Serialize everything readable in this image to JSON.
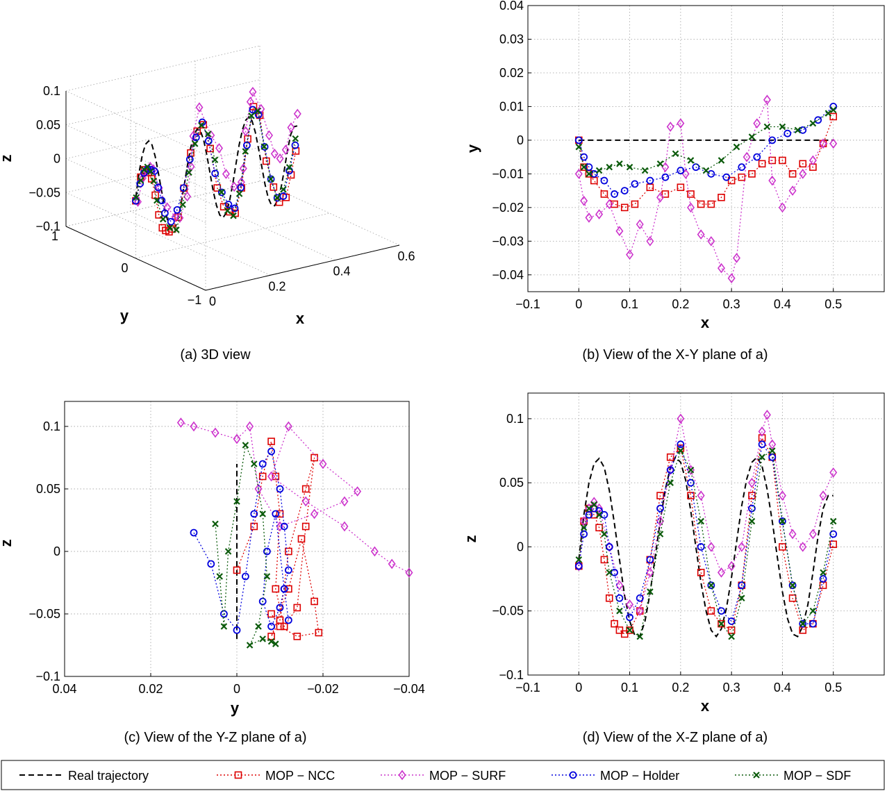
{
  "figure": {
    "background": "#ffffff"
  },
  "styles": {
    "real": {
      "color": "#000000",
      "marker": "none",
      "dash": "8,5"
    },
    "ncc": {
      "color": "#dd0000",
      "marker": "square",
      "dash": "2,3"
    },
    "surf": {
      "color": "#cc33cc",
      "marker": "diamond",
      "dash": "2,3"
    },
    "holder": {
      "color": "#0000dd",
      "marker": "circle",
      "dash": "2,3"
    },
    "sdf": {
      "color": "#0a5a0a",
      "marker": "x",
      "dash": "2,3"
    }
  },
  "legend": {
    "entries": [
      {
        "key": "real",
        "label": "Real trajectory"
      },
      {
        "key": "ncc",
        "label": "MOP − NCC"
      },
      {
        "key": "surf",
        "label": "MOP − SURF"
      },
      {
        "key": "holder",
        "label": "MOP − Holder"
      },
      {
        "key": "sdf",
        "label": "MOP − SDF"
      }
    ]
  },
  "chart_data": [
    {
      "id": "a",
      "type": "scatter",
      "projection": "3d",
      "caption": "(a)  3D view",
      "xlabel": "x",
      "ylabel": "y",
      "zlabel": "z",
      "xlim": [
        0,
        0.6
      ],
      "ylim": [
        -1,
        1
      ],
      "zlim": [
        -0.1,
        0.1
      ],
      "xticks": [
        "0",
        "0.2",
        "0.4",
        "0.6"
      ],
      "yticks": [
        "−1",
        "0",
        "1"
      ],
      "zticks": [
        "−0.1",
        "−0.05",
        "0",
        "0.05",
        "0.1"
      ],
      "grid": true,
      "series_source": "same trajectories as panels (b)-(d)"
    },
    {
      "id": "b",
      "type": "line",
      "caption": "(b)  View of the X-Y plane of a)",
      "xlabel": "x",
      "ylabel": "y",
      "xlim": [
        -0.1,
        0.6
      ],
      "ylim": [
        -0.045,
        0.04
      ],
      "xticks": [
        -0.1,
        0,
        0.1,
        0.2,
        0.3,
        0.4,
        0.5
      ],
      "yticks": [
        -0.04,
        -0.03,
        -0.02,
        -0.01,
        0,
        0.01,
        0.02,
        0.03,
        0.04
      ],
      "xtick_labels": [
        "−0.1",
        "0",
        "0.1",
        "0.2",
        "0.3",
        "0.4",
        "0.5"
      ],
      "ytick_labels": [
        "−0.04",
        "−0.03",
        "−0.02",
        "−0.01",
        "0",
        "0.01",
        "0.02",
        "0.03",
        "0.04"
      ],
      "grid": true,
      "series": [
        {
          "key": "real",
          "x": [
            0,
            0.5
          ],
          "y": [
            0,
            0
          ]
        },
        {
          "key": "ncc",
          "x": [
            0,
            0.01,
            0.02,
            0.03,
            0.05,
            0.07,
            0.09,
            0.11,
            0.14,
            0.17,
            0.2,
            0.22,
            0.24,
            0.26,
            0.28,
            0.3,
            0.32,
            0.34,
            0.36,
            0.38,
            0.4,
            0.42,
            0.44,
            0.46,
            0.48,
            0.5
          ],
          "y": [
            0,
            -0.008,
            -0.01,
            -0.012,
            -0.016,
            -0.019,
            -0.02,
            -0.019,
            -0.014,
            -0.016,
            -0.014,
            -0.016,
            -0.019,
            -0.019,
            -0.017,
            -0.012,
            -0.011,
            -0.01,
            -0.007,
            -0.006,
            -0.006,
            -0.01,
            -0.007,
            -0.008,
            -0.001,
            0.007
          ]
        },
        {
          "key": "surf",
          "x": [
            0,
            0.01,
            0.02,
            0.04,
            0.06,
            0.08,
            0.1,
            0.12,
            0.14,
            0.16,
            0.17,
            0.18,
            0.2,
            0.21,
            0.22,
            0.24,
            0.26,
            0.28,
            0.3,
            0.31,
            0.33,
            0.35,
            0.37,
            0.38,
            0.4,
            0.42,
            0.44,
            0.46,
            0.48,
            0.5
          ],
          "y": [
            -0.01,
            -0.018,
            -0.023,
            -0.022,
            -0.019,
            -0.027,
            -0.034,
            -0.025,
            -0.03,
            -0.017,
            -0.008,
            0.004,
            0.005,
            -0.01,
            -0.02,
            -0.028,
            -0.03,
            -0.038,
            -0.041,
            -0.035,
            -0.005,
            0.005,
            0.012,
            -0.012,
            -0.02,
            -0.015,
            -0.01,
            -0.006,
            -0.001,
            -0.001
          ]
        },
        {
          "key": "holder",
          "x": [
            0,
            0.01,
            0.02,
            0.03,
            0.05,
            0.07,
            0.09,
            0.11,
            0.14,
            0.17,
            0.2,
            0.23,
            0.26,
            0.29,
            0.32,
            0.35,
            0.38,
            0.41,
            0.44,
            0.47,
            0.5
          ],
          "y": [
            0,
            -0.005,
            -0.008,
            -0.01,
            -0.012,
            -0.016,
            -0.015,
            -0.013,
            -0.012,
            -0.011,
            -0.009,
            -0.008,
            -0.01,
            -0.011,
            -0.008,
            -0.005,
            0,
            0.002,
            0.003,
            0.006,
            0.01
          ]
        },
        {
          "key": "sdf",
          "x": [
            0,
            0.01,
            0.02,
            0.04,
            0.06,
            0.08,
            0.1,
            0.13,
            0.16,
            0.19,
            0.22,
            0.25,
            0.28,
            0.31,
            0.34,
            0.37,
            0.4,
            0.43,
            0.46,
            0.49,
            0.5
          ],
          "y": [
            -0.002,
            -0.008,
            -0.01,
            -0.009,
            -0.008,
            -0.007,
            -0.008,
            -0.009,
            -0.007,
            -0.004,
            -0.006,
            -0.009,
            -0.006,
            -0.002,
            0.001,
            0.004,
            0.004,
            0.003,
            0.005,
            0.008,
            0.009
          ]
        }
      ]
    },
    {
      "id": "c",
      "type": "line",
      "caption": "(c)  View of the Y-Z plane of a)",
      "xlabel": "y",
      "ylabel": "z",
      "xlim": [
        0.04,
        -0.04
      ],
      "ylim": [
        -0.1,
        0.12
      ],
      "xticks": [
        0.04,
        0.02,
        0,
        -0.02,
        -0.04
      ],
      "yticks": [
        -0.1,
        -0.05,
        0,
        0.05,
        0.1
      ],
      "xtick_labels": [
        "0.04",
        "0.02",
        "0",
        "−0.02",
        "−0.04"
      ],
      "ytick_labels": [
        "−0.1",
        "−0.05",
        "0",
        "0.05",
        "0.1"
      ],
      "grid": true,
      "series": [
        {
          "key": "real",
          "x": [
            0,
            0
          ],
          "y": [
            -0.07,
            0.07
          ]
        },
        {
          "key": "ncc",
          "x": [
            0,
            -0.004,
            -0.006,
            -0.008,
            -0.009,
            -0.01,
            -0.009,
            -0.011,
            -0.014,
            -0.016,
            -0.018,
            -0.016,
            -0.012,
            -0.01,
            -0.008,
            -0.012,
            -0.015,
            -0.018,
            -0.019,
            -0.014,
            -0.01,
            -0.008
          ],
          "y": [
            -0.015,
            0.02,
            0.06,
            0.088,
            0.06,
            0.03,
            -0.03,
            -0.06,
            -0.045,
            0.02,
            0.075,
            0.05,
            0.0,
            -0.055,
            -0.068,
            -0.03,
            0.01,
            -0.04,
            -0.065,
            -0.068,
            -0.06,
            -0.05
          ]
        },
        {
          "key": "surf",
          "x": [
            0.013,
            0.01,
            0.005,
            0.0,
            -0.003,
            -0.005,
            -0.01,
            -0.018,
            -0.025,
            -0.028,
            -0.02,
            -0.012,
            -0.008,
            -0.016,
            -0.025,
            -0.032,
            -0.036,
            -0.04
          ],
          "y": [
            0.103,
            0.1,
            0.095,
            0.09,
            0.1,
            0.05,
            0.02,
            0.03,
            0.04,
            0.048,
            0.07,
            0.1,
            0.06,
            0.04,
            0.02,
            0.0,
            -0.01,
            -0.017
          ]
        },
        {
          "key": "holder",
          "x": [
            0.01,
            0.006,
            0.003,
            0.0,
            -0.002,
            -0.004,
            -0.006,
            -0.008,
            -0.01,
            -0.011,
            -0.012,
            -0.011,
            -0.01,
            -0.008,
            -0.006,
            -0.007,
            -0.009,
            -0.011,
            -0.012
          ],
          "y": [
            0.015,
            -0.01,
            -0.05,
            -0.063,
            -0.02,
            0.03,
            0.07,
            0.08,
            0.05,
            0.02,
            -0.015,
            -0.03,
            -0.045,
            -0.06,
            -0.04,
            0.0,
            0.03,
            -0.03,
            -0.055
          ]
        },
        {
          "key": "sdf",
          "x": [
            0.005,
            0.004,
            0.003,
            0.002,
            0.0,
            -0.002,
            -0.004,
            -0.006,
            -0.007,
            -0.005,
            -0.003,
            -0.006,
            -0.008,
            -0.009
          ],
          "y": [
            0.022,
            -0.02,
            -0.06,
            0.0,
            0.04,
            0.085,
            0.07,
            0.03,
            -0.02,
            -0.06,
            -0.075,
            -0.07,
            -0.072,
            -0.074
          ]
        }
      ]
    },
    {
      "id": "d",
      "type": "line",
      "caption": "(d)  View of the X-Z plane of a)",
      "xlabel": "x",
      "ylabel": "z",
      "xlim": [
        -0.1,
        0.6
      ],
      "ylim": [
        -0.1,
        0.12
      ],
      "xticks": [
        -0.1,
        0,
        0.1,
        0.2,
        0.3,
        0.4,
        0.5
      ],
      "yticks": [
        -0.1,
        -0.05,
        0,
        0.05,
        0.1
      ],
      "xtick_labels": [
        "−0.1",
        "0",
        "0.1",
        "0.2",
        "0.3",
        "0.4",
        "0.5"
      ],
      "ytick_labels": [
        "−0.1",
        "−0.05",
        "0",
        "0.05",
        "0.1"
      ],
      "grid": true,
      "series": [
        {
          "key": "real",
          "formula": "0.07*sin(2*pi*x/0.16)-ish wave",
          "x": [
            0,
            0.01,
            0.02,
            0.03,
            0.04,
            0.05,
            0.06,
            0.07,
            0.08,
            0.09,
            0.1,
            0.11,
            0.12,
            0.13,
            0.14,
            0.15,
            0.16,
            0.17,
            0.18,
            0.19,
            0.2,
            0.21,
            0.22,
            0.23,
            0.24,
            0.25,
            0.26,
            0.27,
            0.28,
            0.29,
            0.3,
            0.31,
            0.32,
            0.33,
            0.34,
            0.35,
            0.36,
            0.37,
            0.38,
            0.39,
            0.4,
            0.41,
            0.42,
            0.43,
            0.44,
            0.45,
            0.46,
            0.47,
            0.48,
            0.49,
            0.5
          ],
          "y": [
            -0.01,
            0.025,
            0.05,
            0.065,
            0.069,
            0.062,
            0.044,
            0.018,
            -0.01,
            -0.038,
            -0.058,
            -0.069,
            -0.07,
            -0.058,
            -0.036,
            -0.008,
            0.02,
            0.045,
            0.062,
            0.07,
            0.066,
            0.052,
            0.028,
            0.0,
            -0.028,
            -0.05,
            -0.065,
            -0.07,
            -0.064,
            -0.048,
            -0.024,
            0.004,
            0.032,
            0.053,
            0.066,
            0.07,
            0.063,
            0.045,
            0.02,
            -0.008,
            -0.035,
            -0.056,
            -0.068,
            -0.07,
            -0.062,
            -0.045,
            -0.02,
            0.008,
            0.03,
            0.04,
            0.04
          ]
        },
        {
          "key": "ncc",
          "x": [
            0,
            0.01,
            0.02,
            0.03,
            0.04,
            0.05,
            0.06,
            0.07,
            0.08,
            0.09,
            0.1,
            0.12,
            0.14,
            0.16,
            0.18,
            0.2,
            0.22,
            0.24,
            0.26,
            0.28,
            0.3,
            0.32,
            0.34,
            0.36,
            0.38,
            0.4,
            0.42,
            0.44,
            0.46,
            0.48,
            0.5
          ],
          "y": [
            -0.015,
            0.02,
            0.03,
            0.025,
            0.015,
            -0.01,
            -0.04,
            -0.06,
            -0.065,
            -0.068,
            -0.065,
            -0.05,
            -0.01,
            0.04,
            0.07,
            0.077,
            0.04,
            -0.02,
            -0.05,
            -0.06,
            -0.065,
            -0.03,
            0.04,
            0.085,
            0.07,
            0.0,
            -0.04,
            -0.065,
            -0.06,
            -0.03,
            0.002
          ]
        },
        {
          "key": "surf",
          "x": [
            0,
            0.01,
            0.02,
            0.03,
            0.04,
            0.06,
            0.08,
            0.1,
            0.12,
            0.14,
            0.16,
            0.18,
            0.2,
            0.22,
            0.24,
            0.26,
            0.28,
            0.3,
            0.32,
            0.34,
            0.36,
            0.37,
            0.38,
            0.4,
            0.42,
            0.44,
            0.46,
            0.48,
            0.5
          ],
          "y": [
            -0.015,
            0.02,
            0.03,
            0.035,
            0.03,
            0.0,
            -0.03,
            -0.045,
            -0.05,
            -0.02,
            0.02,
            0.06,
            0.1,
            0.06,
            0.04,
            0.0,
            -0.02,
            -0.015,
            0.0,
            0.05,
            0.09,
            0.103,
            0.08,
            0.04,
            0.01,
            0.0,
            0.01,
            0.04,
            0.058
          ]
        },
        {
          "key": "holder",
          "x": [
            0,
            0.01,
            0.02,
            0.03,
            0.04,
            0.05,
            0.06,
            0.07,
            0.08,
            0.1,
            0.12,
            0.14,
            0.16,
            0.18,
            0.2,
            0.22,
            0.24,
            0.26,
            0.28,
            0.3,
            0.32,
            0.34,
            0.36,
            0.38,
            0.4,
            0.42,
            0.44,
            0.46,
            0.48,
            0.5
          ],
          "y": [
            -0.015,
            0.01,
            0.025,
            0.03,
            0.028,
            0.025,
            0.0,
            -0.02,
            -0.04,
            -0.055,
            -0.04,
            -0.01,
            0.03,
            0.06,
            0.08,
            0.05,
            0.0,
            -0.03,
            -0.05,
            -0.058,
            -0.03,
            0.03,
            0.08,
            0.07,
            0.02,
            -0.03,
            -0.06,
            -0.06,
            -0.025,
            0.01
          ]
        },
        {
          "key": "sdf",
          "x": [
            0,
            0.01,
            0.02,
            0.03,
            0.04,
            0.05,
            0.06,
            0.08,
            0.1,
            0.12,
            0.14,
            0.16,
            0.18,
            0.2,
            0.22,
            0.24,
            0.26,
            0.28,
            0.3,
            0.32,
            0.34,
            0.36,
            0.38,
            0.4,
            0.42,
            0.44,
            0.46,
            0.48,
            0.5
          ],
          "y": [
            -0.01,
            0.015,
            0.03,
            0.033,
            0.025,
            0.01,
            -0.02,
            -0.05,
            -0.065,
            -0.07,
            -0.035,
            0.01,
            0.05,
            0.075,
            0.06,
            0.02,
            -0.03,
            -0.06,
            -0.07,
            -0.04,
            0.02,
            0.07,
            0.075,
            0.02,
            -0.03,
            -0.06,
            -0.05,
            -0.02,
            0.02
          ]
        }
      ]
    }
  ]
}
